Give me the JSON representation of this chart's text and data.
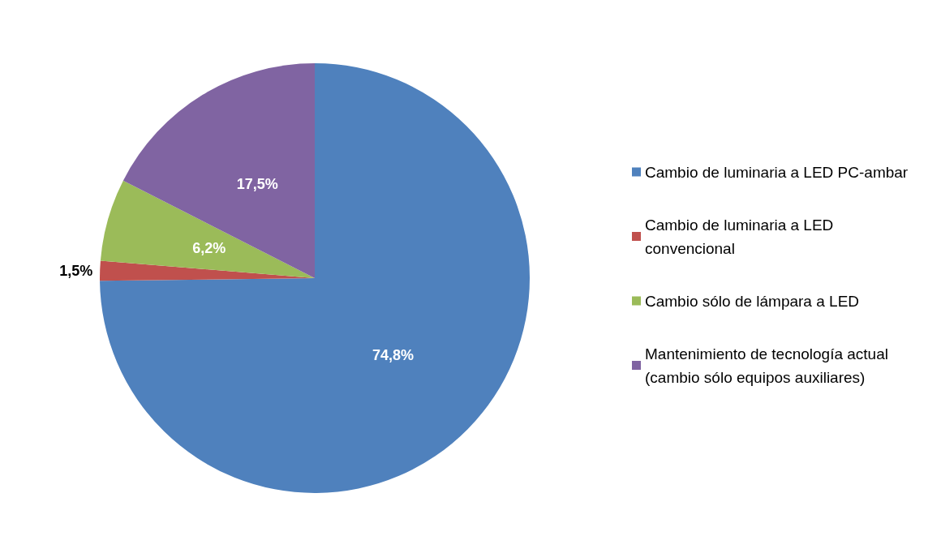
{
  "chart_data": {
    "type": "pie",
    "categories": [
      "Cambio de luminaria a LED PC-ambar",
      "Cambio de luminaria a LED convencional",
      "Cambio sólo de lámpara a LED",
      "Mantenimiento de tecnología actual (cambio sólo equipos auxiliares)"
    ],
    "values": [
      74.8,
      1.5,
      6.2,
      17.5
    ],
    "colors": [
      "#4f81bd",
      "#c0504d",
      "#9bbb59",
      "#8064a2"
    ],
    "value_labels": [
      "74,8%",
      "1,5%",
      "6,2%",
      "17,5%"
    ],
    "legend": "right"
  }
}
